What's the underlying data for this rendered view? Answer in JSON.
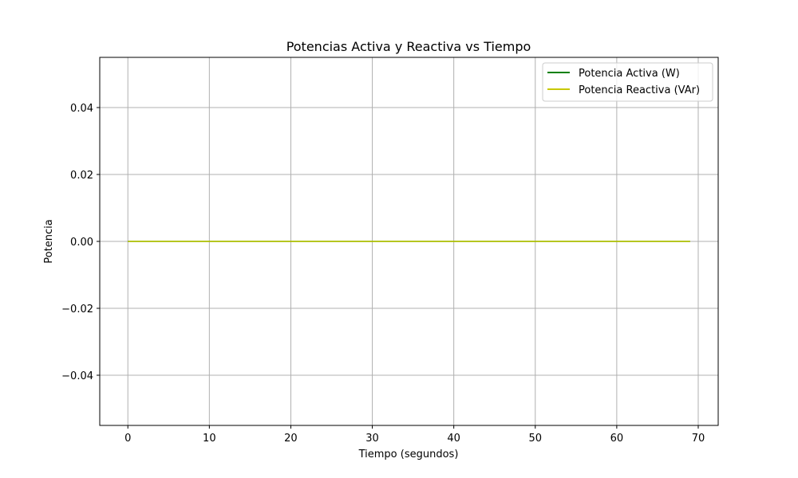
{
  "chart_data": {
    "type": "line",
    "title": "Potencias Activa y Reactiva vs Tiempo",
    "xlabel": "Tiempo (segundos)",
    "ylabel": "Potencia",
    "xlim": [
      -3.45,
      72.45
    ],
    "ylim": [
      -0.055,
      0.055
    ],
    "x_ticks": [
      0,
      10,
      20,
      30,
      40,
      50,
      60,
      70
    ],
    "x_tick_labels": [
      "0",
      "10",
      "20",
      "30",
      "40",
      "50",
      "60",
      "70"
    ],
    "y_ticks": [
      -0.04,
      -0.02,
      0.0,
      0.02,
      0.04
    ],
    "y_tick_labels": [
      "−0.04",
      "−0.02",
      "0.00",
      "0.02",
      "0.04"
    ],
    "grid": true,
    "legend_position": "top-right",
    "series": [
      {
        "name": "Potencia Activa (W)",
        "color": "#008000",
        "x": [
          0,
          69
        ],
        "y": [
          0.0,
          0.0
        ]
      },
      {
        "name": "Potencia Reactiva (VAr)",
        "color": "#c8c800",
        "x": [
          0,
          69
        ],
        "y": [
          0.0,
          0.0
        ]
      }
    ]
  }
}
